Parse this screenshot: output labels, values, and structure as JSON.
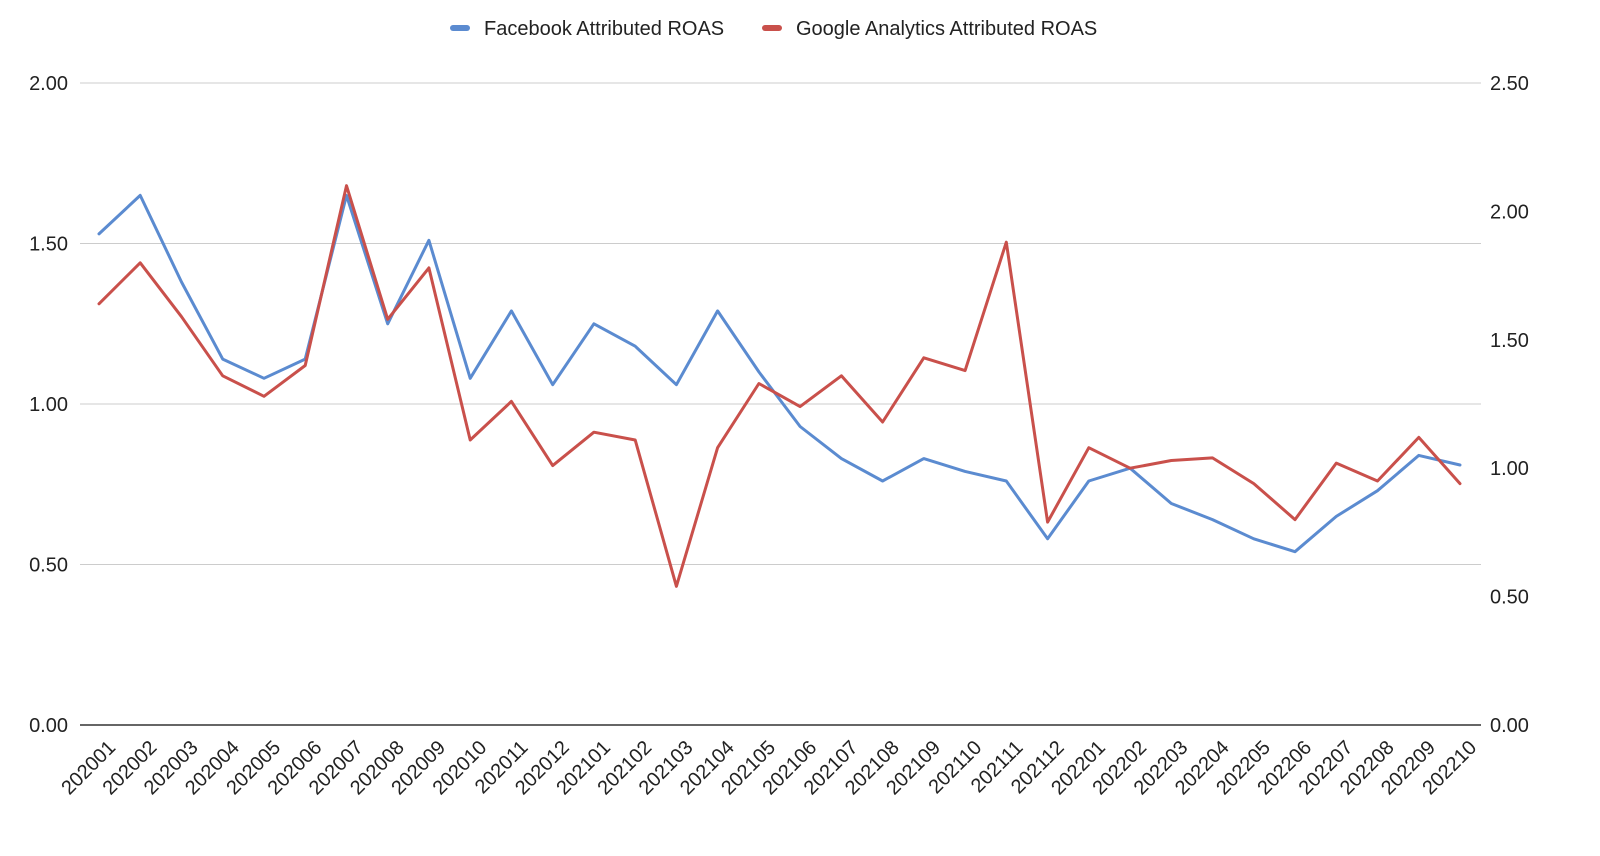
{
  "chart_data": {
    "type": "line",
    "title": "",
    "xlabel": "",
    "ylabel": "",
    "y2label": "",
    "legend_position": "top-center",
    "grid": true,
    "categories": [
      "202001",
      "202002",
      "202003",
      "202004",
      "202005",
      "202006",
      "202007",
      "202008",
      "202009",
      "202010",
      "202011",
      "202012",
      "202101",
      "202102",
      "202103",
      "202104",
      "202105",
      "202106",
      "202107",
      "202108",
      "202109",
      "202110",
      "202111",
      "202112",
      "202201",
      "202202",
      "202203",
      "202204",
      "202205",
      "202206",
      "202207",
      "202208",
      "202209",
      "202210"
    ],
    "ylim": [
      0,
      2
    ],
    "y_ticks": [
      0,
      0.5,
      1,
      1.5,
      2
    ],
    "y_tick_labels": [
      "0.00",
      "0.50",
      "1.00",
      "1.50",
      "2.00"
    ],
    "y2lim": [
      0,
      2.5
    ],
    "y2_ticks": [
      0,
      0.5,
      1,
      1.5,
      2,
      2.5
    ],
    "y2_tick_labels": [
      "0.00",
      "0.50",
      "1.00",
      "1.50",
      "2.00",
      "2.50"
    ],
    "series": [
      {
        "name": "Facebook Attributed ROAS",
        "color": "#5b8bd0",
        "axis": "left",
        "values": [
          1.53,
          1.65,
          1.38,
          1.14,
          1.08,
          1.14,
          1.65,
          1.25,
          1.51,
          1.08,
          1.29,
          1.06,
          1.25,
          1.18,
          1.06,
          1.29,
          1.1,
          0.93,
          0.83,
          0.76,
          0.83,
          0.79,
          0.76,
          0.58,
          0.76,
          0.8,
          0.69,
          0.64,
          0.58,
          0.54,
          0.65,
          0.73,
          0.84,
          0.81
        ]
      },
      {
        "name": "Google Analytics Attributed ROAS",
        "color": "#c9504b",
        "axis": "right",
        "values": [
          1.64,
          1.8,
          1.59,
          1.36,
          1.28,
          1.4,
          2.1,
          1.58,
          1.78,
          1.11,
          1.26,
          1.01,
          1.14,
          1.11,
          0.54,
          1.08,
          1.33,
          1.24,
          1.36,
          1.18,
          1.43,
          1.38,
          1.88,
          0.79,
          1.08,
          1.0,
          1.03,
          1.04,
          0.94,
          0.8,
          1.02,
          0.95,
          1.12,
          0.94
        ]
      }
    ]
  }
}
